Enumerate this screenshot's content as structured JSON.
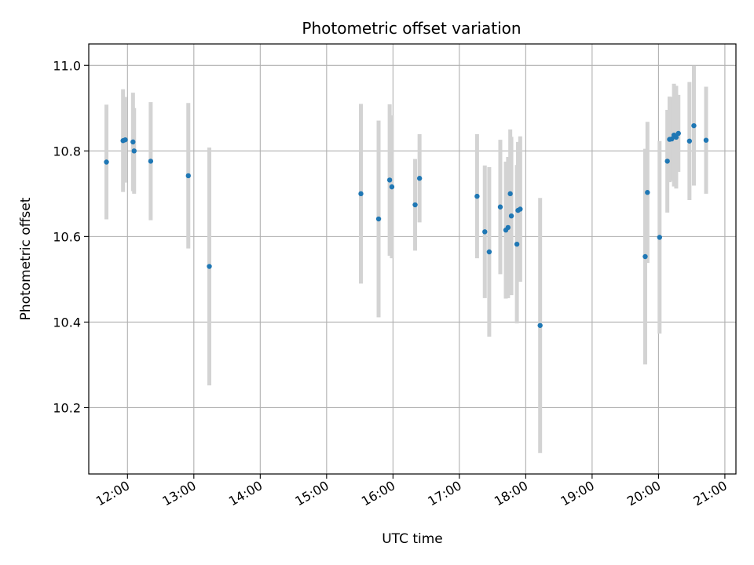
{
  "chart_data": {
    "type": "scatter",
    "title": "Photometric offset variation",
    "xlabel": "UTC time",
    "ylabel": "Photometric offset",
    "xlim": [
      "11:25",
      "21:10"
    ],
    "ylim": [
      10.045,
      11.05
    ],
    "grid": true,
    "x_ticks": [
      "12:00",
      "13:00",
      "14:00",
      "15:00",
      "16:00",
      "17:00",
      "18:00",
      "19:00",
      "20:00",
      "21:00"
    ],
    "y_ticks": [
      "10.2",
      "10.4",
      "10.6",
      "10.8",
      "11.0"
    ],
    "colors": {
      "point": "#1f77b4",
      "errorbar": "#d3d3d3",
      "grid": "#b0b0b0"
    },
    "points": [
      {
        "x": "11:41",
        "y": 10.774,
        "err": 0.134
      },
      {
        "x": "11:56",
        "y": 10.824,
        "err": 0.12
      },
      {
        "x": "11:58",
        "y": 10.826,
        "err": 0.1
      },
      {
        "x": "12:05",
        "y": 10.821,
        "err": 0.115
      },
      {
        "x": "12:06",
        "y": 10.8,
        "err": 0.1
      },
      {
        "x": "12:21",
        "y": 10.776,
        "err": 0.138
      },
      {
        "x": "12:55",
        "y": 10.742,
        "err": 0.17
      },
      {
        "x": "13:14",
        "y": 10.53,
        "err": 0.278
      },
      {
        "x": "15:31",
        "y": 10.7,
        "err": 0.21
      },
      {
        "x": "15:47",
        "y": 10.641,
        "err": 0.23
      },
      {
        "x": "15:57",
        "y": 10.732,
        "err": 0.177
      },
      {
        "x": "15:59",
        "y": 10.716,
        "err": 0.167
      },
      {
        "x": "16:20",
        "y": 10.674,
        "err": 0.107
      },
      {
        "x": "16:24",
        "y": 10.736,
        "err": 0.103
      },
      {
        "x": "17:16",
        "y": 10.694,
        "err": 0.145
      },
      {
        "x": "17:23",
        "y": 10.611,
        "err": 0.155
      },
      {
        "x": "17:27",
        "y": 10.564,
        "err": 0.198
      },
      {
        "x": "17:37",
        "y": 10.669,
        "err": 0.157
      },
      {
        "x": "17:42",
        "y": 10.615,
        "err": 0.16
      },
      {
        "x": "17:44",
        "y": 10.621,
        "err": 0.165
      },
      {
        "x": "17:46",
        "y": 10.7,
        "err": 0.15
      },
      {
        "x": "17:47",
        "y": 10.648,
        "err": 0.185
      },
      {
        "x": "17:52",
        "y": 10.582,
        "err": 0.185
      },
      {
        "x": "17:53",
        "y": 10.661,
        "err": 0.16
      },
      {
        "x": "17:55",
        "y": 10.664,
        "err": 0.17
      },
      {
        "x": "18:13",
        "y": 10.392,
        "err": 0.298
      },
      {
        "x": "19:48",
        "y": 10.553,
        "err": 0.252
      },
      {
        "x": "19:50",
        "y": 10.703,
        "err": 0.165
      },
      {
        "x": "20:01",
        "y": 10.598,
        "err": 0.225
      },
      {
        "x": "20:08",
        "y": 10.776,
        "err": 0.12
      },
      {
        "x": "20:10",
        "y": 10.827,
        "err": 0.1
      },
      {
        "x": "20:12",
        "y": 10.828,
        "err": 0.098
      },
      {
        "x": "20:14",
        "y": 10.837,
        "err": 0.12
      },
      {
        "x": "20:16",
        "y": 10.832,
        "err": 0.12
      },
      {
        "x": "20:18",
        "y": 10.841,
        "err": 0.09
      },
      {
        "x": "20:28",
        "y": 10.823,
        "err": 0.138
      },
      {
        "x": "20:32",
        "y": 10.859,
        "err": 0.14
      },
      {
        "x": "20:43",
        "y": 10.825,
        "err": 0.125
      }
    ]
  }
}
